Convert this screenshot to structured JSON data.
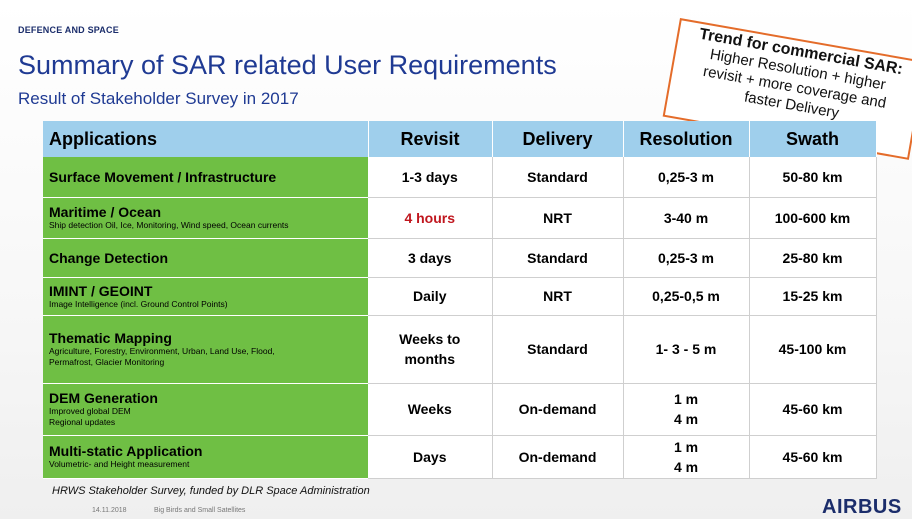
{
  "header": {
    "brand_small": "DEFENCE AND SPACE",
    "title": "Summary of SAR related User Requirements",
    "subtitle": "Result of Stakeholder Survey in 2017"
  },
  "callout": {
    "heading": "Trend for commercial SAR:",
    "line1": "Higher Resolution + higher",
    "line2": "revisit + more coverage and",
    "line3": "faster Delivery"
  },
  "table": {
    "columns": [
      "Applications",
      "Revisit",
      "Delivery",
      "Resolution",
      "Swath"
    ],
    "rows": [
      {
        "name": "Surface Movement / Infrastructure",
        "desc1": "",
        "desc2": "",
        "revisit": "1-3 days",
        "revisit2": "",
        "delivery": "Standard",
        "resolution": "0,25-3 m",
        "resolution2": "",
        "swath": "50-80 km"
      },
      {
        "name": "Maritime / Ocean",
        "desc1": "Ship detection Oil, Ice, Monitoring, Wind speed, Ocean currents",
        "desc2": "",
        "revisit": "4 hours",
        "revisit2": "",
        "delivery": "NRT",
        "resolution": "3-40 m",
        "resolution2": "",
        "swath": "100-600 km"
      },
      {
        "name": "Change Detection",
        "desc1": "",
        "desc2": "",
        "revisit": "3 days",
        "revisit2": "",
        "delivery": "Standard",
        "resolution": "0,25-3 m",
        "resolution2": "",
        "swath": "25-80 km"
      },
      {
        "name": "IMINT / GEOINT",
        "desc1": "Image Intelligence (incl. Ground Control Points)",
        "desc2": "",
        "revisit": "Daily",
        "revisit2": "",
        "delivery": "NRT",
        "resolution": "0,25-0,5 m",
        "resolution2": "",
        "swath": "15-25 km"
      },
      {
        "name": "Thematic Mapping",
        "desc1": "Agriculture, Forestry, Environment, Urban, Land Use, Flood,",
        "desc2": "Permafrost, Glacier Monitoring",
        "revisit": "Weeks to",
        "revisit2": "months",
        "delivery": "Standard",
        "resolution": "1- 3 - 5 m",
        "resolution2": "",
        "swath": "45-100 km"
      },
      {
        "name": "DEM Generation",
        "desc1": "Improved global DEM",
        "desc2": "Regional updates",
        "revisit": "Weeks",
        "revisit2": "",
        "delivery": "On-demand",
        "resolution": "1 m",
        "resolution2": "4 m",
        "swath": "45-60 km"
      },
      {
        "name": "Multi-static Application",
        "desc1": "Volumetric- and Height measurement",
        "desc2": "",
        "revisit": "Days",
        "revisit2": "",
        "delivery": "On-demand",
        "resolution": "1 m",
        "resolution2": "4 m",
        "swath": "45-60 km"
      }
    ]
  },
  "footer": {
    "note": "HRWS Stakeholder Survey, funded by DLR Space Administration",
    "date": "14.11.2018",
    "event": "Big Birds and Small Satellites",
    "logo": "AIRBUS"
  },
  "colors": {
    "title": "#1f3a93",
    "header_row": "#9fcfec",
    "app_column": "#6fbf44",
    "highlight": "#c0161e",
    "callout_border": "#e46c2a"
  }
}
